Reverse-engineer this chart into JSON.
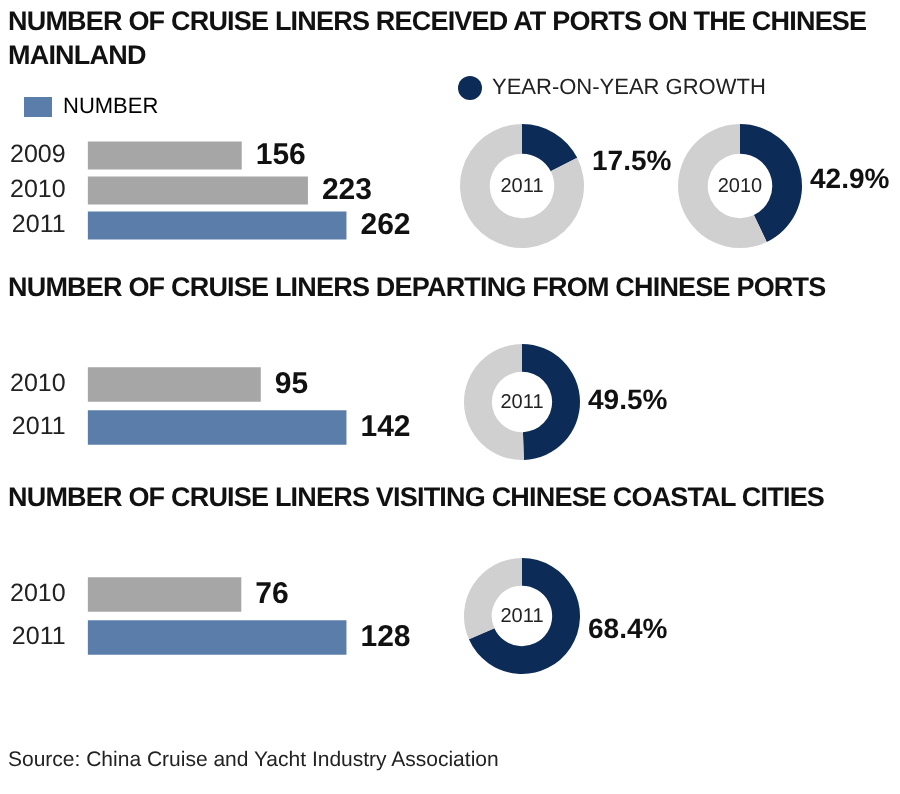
{
  "chart_data": [
    {
      "type": "bar",
      "orientation": "horizontal",
      "title": "NUMBER OF CRUISE LINERS RECEIVED AT PORTS ON THE CHINESE MAINLAND",
      "categories": [
        "2009",
        "2010",
        "2011"
      ],
      "series": [
        {
          "name": "NUMBER",
          "color": "#5a7ea9",
          "colors": [
            "#a6a6a6",
            "#a6a6a6",
            "#5a7ea9"
          ],
          "values": [
            156,
            223,
            262
          ]
        }
      ],
      "data_labels": true,
      "tick_labels": "y",
      "legend": "top left"
    },
    {
      "type": "donut",
      "title": "2011",
      "categories": [
        "YEAR-ON-YEAR GROWTH",
        null
      ],
      "values": [
        17.5,
        82.5
      ],
      "colors": [
        "#0c2b56",
        "#d0d0d0"
      ],
      "value_labels": [
        "17.5%",
        null
      ],
      "legend": "top right"
    },
    {
      "type": "donut",
      "title": "2010",
      "categories": [
        null,
        null
      ],
      "values": [
        42.9,
        57.1
      ],
      "colors": [
        "#0c2b56",
        "#d0d0d0"
      ],
      "value_labels": [
        "42.9%",
        null
      ]
    },
    {
      "type": "bar",
      "orientation": "horizontal",
      "title": "NUMBER OF CRUISE LINERS DEPARTING FROM CHINESE PORTS",
      "categories": [
        "2010",
        "2011"
      ],
      "series": [
        {
          "colors": [
            "#a6a6a6",
            "#5a7ea9"
          ],
          "values": [
            95,
            142
          ]
        }
      ],
      "data_labels": true,
      "tick_labels": "y"
    },
    {
      "type": "donut",
      "title": "2011",
      "categories": [
        null,
        null
      ],
      "values": [
        49.5,
        50.5
      ],
      "colors": [
        "#0c2b56",
        "#d0d0d0"
      ],
      "value_labels": [
        "49.5%",
        null
      ]
    },
    {
      "type": "bar",
      "orientation": "horizontal",
      "title": "NUMBER OF CRUISE LINERS VISITING CHINESE COASTAL CITIES",
      "categories": [
        "2010",
        "2011"
      ],
      "series": [
        {
          "colors": [
            "#a6a6a6",
            "#5a7ea9"
          ],
          "values": [
            76,
            128
          ]
        }
      ],
      "data_labels": true,
      "tick_labels": "y",
      "annotations": [
        "Source: China Cruise and Yacht Industry Association"
      ]
    },
    {
      "type": "donut",
      "title": "2011",
      "categories": [
        null,
        null
      ],
      "values": [
        68.4,
        31.6
      ],
      "colors": [
        "#0c2b56",
        "#d0d0d0"
      ],
      "value_labels": [
        "68.4%",
        null
      ]
    }
  ]
}
